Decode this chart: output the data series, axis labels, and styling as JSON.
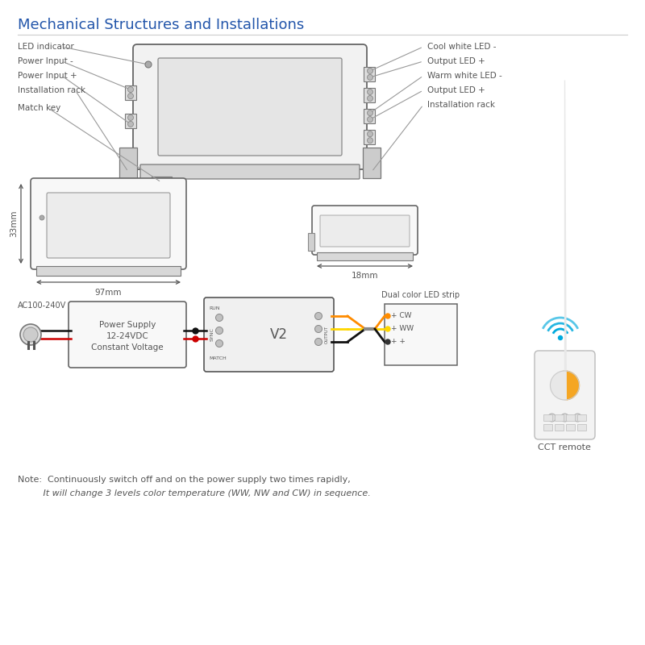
{
  "title": "Mechanical Structures and Installations",
  "title_color": "#2255aa",
  "title_fontsize": 13,
  "bg_color": "#ffffff",
  "label_color": "#555555",
  "dim_color": "#444444",
  "label_fontsize": 7.5,
  "dim_33": "33mm",
  "dim_97": "97mm",
  "dim_18": "18mm",
  "ac_text": "AC100-240V",
  "ps_text1": "Power Supply",
  "ps_text2": "12-24VDC",
  "ps_text3": "Constant Voltage",
  "v2_text": "V2",
  "led_strip_text": "Dual color LED strip",
  "cw_text": "+ CW",
  "ww_text": "+ WW",
  "plus_text": "+ +",
  "cct_remote_text": "CCT remote",
  "note_line1": "Note:  Continuously switch off and on the power supply two times rapidly,",
  "note_line2": "         It will change 3 levels color temperature (WW, NW and CW) in sequence.",
  "run_text": "RUN",
  "match_text": "MATCH",
  "sync_text": "SYNC"
}
